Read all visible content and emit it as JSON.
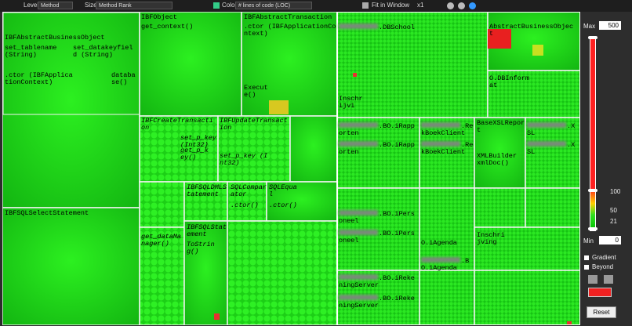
{
  "toolbar": {
    "level_label": "Level",
    "level_value": "Method",
    "size_label": "Size",
    "size_value": "Method Rank",
    "color_label": "Color",
    "color_value": "# lines of code (LOC)",
    "fit_label": "Fit in Window",
    "zoom": "x1"
  },
  "treemap": {
    "labels": [
      "IBFAbstractBusinessObject",
      "set_tablename (String)",
      "set_datakeyfield (String)",
      ".ctor (IBFApplicationContext)",
      "database()",
      "IBFObject",
      "get_context()",
      "IBFAbstractTransaction",
      ".ctor (IBFApplicationContext)",
      "Execute()",
      "IBFCreateTransaction",
      "set_p_key (Int32)",
      "get_p_key()",
      "IBFUpdateTransaction",
      "set_p_key (Int32)",
      "IBFSQLDMLStatement",
      "SQLComparator",
      "SQLEqual",
      ".ctor()",
      ".ctor()",
      "IBFSQLSelectStatement",
      "get_dataManager()",
      "IBFSQLStatement",
      "ToString()",
      ".DBSchool",
      "AbstractBusinessObject",
      "Inschrijvi",
      "O.DBInformat",
      ".BO.iRapporten",
      ".BO.iRapporten",
      ".RekBoekClient",
      ".RekBoekClient",
      "BaseXSLReport",
      "XMLBuilder xmlDoc()",
      ".XSL",
      ".XSL",
      ".BO.iPersoneel",
      ".BO.iPersoneel",
      "O.iAgenda",
      ".BO.iAgenda",
      "Inschrijving",
      ".BO.iRekeningServer",
      ".BO.iRekeningServer"
    ]
  },
  "panel": {
    "max_label": "Max",
    "max_value": "500",
    "ticks": [
      "100",
      "50",
      "21"
    ],
    "min_label": "Min",
    "min_value": "0",
    "gradient": "Gradient",
    "beyond": "Beyond",
    "reset": "Reset"
  }
}
